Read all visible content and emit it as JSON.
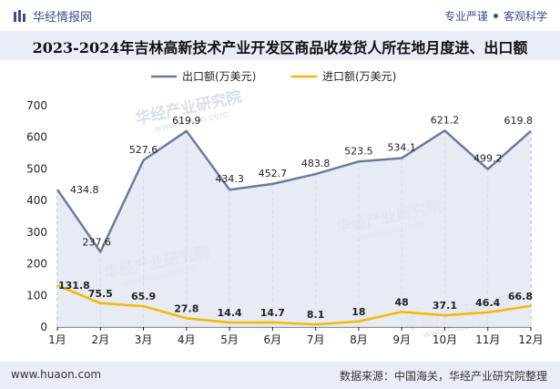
{
  "header": {
    "brand": "华经情报网",
    "slogan_left": "专业严谨",
    "slogan_right": "客观科学"
  },
  "title": "2023-2024年吉林高新技术产业开发区商品收发货人所在地月度进、出口额",
  "footer": {
    "site": "www.huaon.com",
    "source": "数据来源：中国海关，华经产业研究院整理"
  },
  "watermark": {
    "text": "华经产业研究院",
    "url": "www.huaon.com"
  },
  "colors": {
    "export": "#6e7a9e",
    "import": "#f5b800",
    "area": "#e3e7f1",
    "title_band": "#e8edf7",
    "brand": "#3b4e8c"
  },
  "chart_data": {
    "type": "line",
    "categories": [
      "1月",
      "2月",
      "3月",
      "4月",
      "5月",
      "6月",
      "7月",
      "8月",
      "9月",
      "10月",
      "11月",
      "12月"
    ],
    "series": [
      {
        "name": "出口额(万美元)",
        "values": [
          434.8,
          237.6,
          527.6,
          619.9,
          434.3,
          452.7,
          483.8,
          523.5,
          534.1,
          621.2,
          499.2,
          619.8
        ],
        "labels": [
          "434.8",
          "237.6",
          "527.6",
          "619.9",
          "434.3",
          "452.7",
          "483.8",
          "523.5",
          "534.1",
          "621.2",
          "499.2",
          "619.8"
        ]
      },
      {
        "name": "进口额(万美元)",
        "values": [
          131.8,
          75.5,
          65.9,
          27.8,
          14.4,
          14.7,
          8.1,
          18,
          48,
          37.1,
          46.4,
          66.8
        ],
        "labels": [
          "131.8",
          "75.5",
          "65.9",
          "27.8",
          "14.4",
          "14.7",
          "8.1",
          "18",
          "48",
          "37.1",
          "46.4",
          "66.8"
        ]
      }
    ],
    "ylim": [
      0,
      700
    ],
    "yticks": [
      "0",
      "100",
      "200",
      "300",
      "400",
      "500",
      "600",
      "700"
    ],
    "grid": false,
    "legend": "top-center"
  }
}
